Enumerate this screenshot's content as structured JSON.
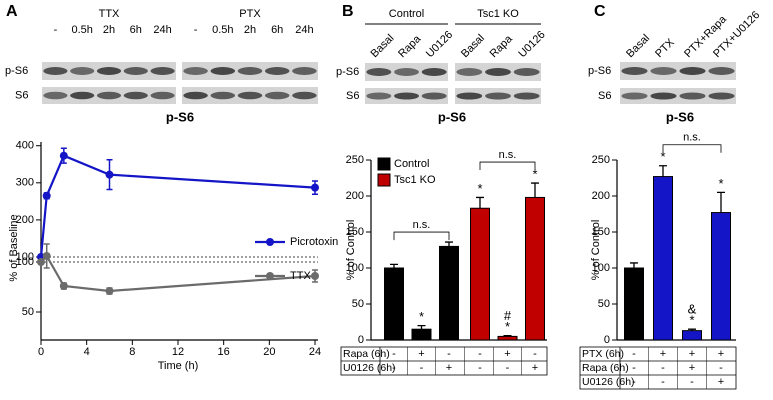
{
  "panel_labels": [
    "A",
    "B",
    "C"
  ],
  "blots": [
    {
      "groups": [
        {
          "label": "TTX",
          "lanes": [
            "-",
            "0.5h",
            "2h",
            "6h",
            "24h"
          ]
        },
        {
          "label": "PTX",
          "lanes": [
            "-",
            "0.5h",
            "2h",
            "6h",
            "24h"
          ]
        }
      ],
      "rows": [
        "p-S6",
        "S6"
      ],
      "title": "p-S6"
    },
    {
      "groups": [
        {
          "label": "Control",
          "lanes": [
            "Basal",
            "Rapa",
            "U0126"
          ]
        },
        {
          "label": "Tsc1 KO",
          "lanes": [
            "Basal",
            "Rapa",
            "U0126"
          ]
        }
      ],
      "rows": [
        "p-S6",
        "S6"
      ],
      "title": "p-S6"
    },
    {
      "groups": [
        {
          "lanes": [
            "Basal",
            "PTX",
            "PTX+Rapa",
            "PTX+U0126"
          ]
        }
      ],
      "rows": [
        "p-S6",
        "S6"
      ],
      "title": "p-S6"
    }
  ],
  "chart_data": [
    {
      "type": "line",
      "xlabel": "Time (h)",
      "ylabel": "% of Baseline",
      "x": [
        0,
        0.5,
        2,
        6,
        24
      ],
      "xlim": [
        0,
        24
      ],
      "xticks": [
        0,
        4,
        8,
        12,
        16,
        20,
        24
      ],
      "panels": [
        {
          "ylim": [
            100,
            410
          ],
          "yticks": [
            100,
            200,
            300,
            400
          ]
        },
        {
          "ylim": [
            22,
            120
          ],
          "yticks": [
            50,
            100
          ]
        }
      ],
      "reference_line": 100,
      "series": [
        {
          "name": "Picrotoxin",
          "color": "#1515c8",
          "panel": 0,
          "values": [
            100,
            265,
            373,
            322,
            287
          ],
          "errors": [
            0,
            8,
            20,
            40,
            18
          ]
        },
        {
          "name": "TTX",
          "color": "#6b6b6b",
          "panel": 1,
          "values": [
            100,
            106,
            76,
            71,
            86
          ],
          "errors": [
            0,
            12,
            3,
            3,
            6
          ]
        }
      ]
    },
    {
      "type": "bar",
      "ylabel": "% of Control",
      "ylim": [
        0,
        250
      ],
      "yticks": [
        0,
        50,
        100,
        150,
        200,
        250
      ],
      "series": [
        {
          "name": "Control",
          "color": "#000000",
          "values": [
            100,
            15,
            130
          ],
          "errors": [
            5,
            5,
            6
          ]
        },
        {
          "name": "Tsc1 KO",
          "color": "#c00000",
          "values": [
            183,
            5,
            198
          ],
          "errors": [
            15,
            1,
            20
          ]
        }
      ],
      "annotations": [
        {
          "text": "*",
          "series": 0,
          "index": 1
        },
        {
          "text": "*",
          "series": 1,
          "index": 0
        },
        {
          "text": "*",
          "series": 1,
          "index": 1
        },
        {
          "text": "#",
          "series": 1,
          "index": 1
        },
        {
          "text": "*",
          "series": 1,
          "index": 2
        }
      ],
      "brackets": [
        {
          "text": "n.s.",
          "series": 0,
          "from": 0,
          "to": 2
        },
        {
          "text": "n.s.",
          "series": 1,
          "from": 0,
          "to": 2
        }
      ],
      "conditions": [
        {
          "label": "Rapa (6h)",
          "values": [
            "-",
            "+",
            "-",
            "-",
            "+",
            "-"
          ]
        },
        {
          "label": "U0126 (6h)",
          "values": [
            "-",
            "-",
            "+",
            "-",
            "-",
            "+"
          ]
        }
      ]
    },
    {
      "type": "bar",
      "ylabel": "% of Control",
      "ylim": [
        0,
        250
      ],
      "yticks": [
        0,
        50,
        100,
        150,
        200,
        250
      ],
      "series": [
        {
          "colors": [
            "#000000",
            "#1515c8",
            "#1515c8",
            "#1515c8"
          ],
          "values": [
            100,
            227,
            13,
            177
          ],
          "errors": [
            7,
            15,
            2,
            28
          ]
        }
      ],
      "annotations": [
        {
          "text": "*",
          "series": 0,
          "index": 1
        },
        {
          "text": "*",
          "series": 0,
          "index": 2
        },
        {
          "text": "&",
          "series": 0,
          "index": 2
        },
        {
          "text": "*",
          "series": 0,
          "index": 3
        }
      ],
      "brackets": [
        {
          "text": "n.s.",
          "series": 0,
          "from": 1,
          "to": 3
        }
      ],
      "conditions": [
        {
          "label": "PTX (6h)",
          "values": [
            "-",
            "+",
            "+",
            "+"
          ]
        },
        {
          "label": "Rapa (6h)",
          "values": [
            "-",
            "-",
            "+",
            "-"
          ]
        },
        {
          "label": "U0126 (6h)",
          "values": [
            "-",
            "-",
            "-",
            "+"
          ]
        }
      ]
    }
  ]
}
